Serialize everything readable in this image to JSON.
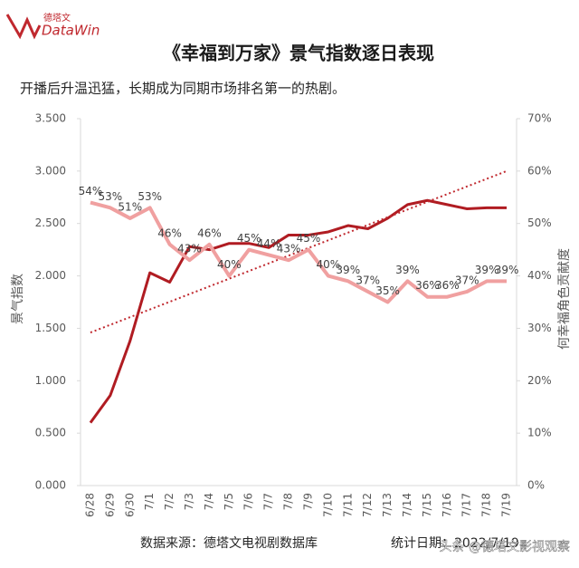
{
  "header": {
    "logo_cn": "德塔文",
    "logo_en": "DataWin"
  },
  "chart_data": {
    "type": "line",
    "title": "《幸福到万家》景气指数逐日表现",
    "subtitle": "开播后升温迅猛，长期成为同期市场排名第一的热剧。",
    "categories": [
      "6/28",
      "6/29",
      "6/30",
      "7/1",
      "7/2",
      "7/3",
      "7/4",
      "7/5",
      "7/6",
      "7/7",
      "7/8",
      "7/9",
      "7/10",
      "7/11",
      "7/12",
      "7/13",
      "7/14",
      "7/15",
      "7/16",
      "7/17",
      "7/18",
      "7/19"
    ],
    "series": [
      {
        "name": "景气指数",
        "color": "#b01c22",
        "values": [
          0.6,
          0.86,
          1.38,
          2.03,
          1.94,
          2.28,
          2.25,
          2.31,
          2.31,
          2.27,
          2.39,
          2.39,
          2.42,
          2.48,
          2.45,
          2.55,
          2.68,
          2.72,
          2.68,
          2.64,
          2.65,
          2.65
        ],
        "trendline": {
          "start": 1.46,
          "end": 3.0,
          "color": "#c0282e"
        }
      },
      {
        "name": "何幸福角色贡献度",
        "color": "#f0a0a0",
        "axis": "y2",
        "values": [
          54,
          53,
          51,
          53,
          46,
          43,
          46,
          40,
          45,
          44,
          43,
          45,
          40,
          39,
          37,
          35,
          39,
          36,
          36,
          37,
          39,
          39
        ],
        "value_labels": [
          "54%",
          "53%",
          "51%",
          "53%",
          "46%",
          "43%",
          "46%",
          "40%",
          "45%",
          "44%",
          "43%",
          "45%",
          "40%",
          "39%",
          "37%",
          "35%",
          "39%",
          "36%",
          "36%",
          "37%",
          "39%",
          "39%"
        ]
      }
    ],
    "ylim": [
      0,
      3.5
    ],
    "yticks": [
      {
        "value": 0,
        "label": "0.000"
      },
      {
        "value": 0.5,
        "label": "0.500"
      },
      {
        "value": 1,
        "label": "1.000"
      },
      {
        "value": 1.5,
        "label": "1.500"
      },
      {
        "value": 2,
        "label": "2.000"
      },
      {
        "value": 2.5,
        "label": "2.500"
      },
      {
        "value": 3,
        "label": "3.000"
      },
      {
        "value": 3.5,
        "label": "3.500"
      }
    ],
    "y2lim": [
      0,
      70
    ],
    "y2ticks": [
      {
        "value": 0,
        "label": "0%"
      },
      {
        "value": 10,
        "label": "10%"
      },
      {
        "value": 20,
        "label": "20%"
      },
      {
        "value": 30,
        "label": "30%"
      },
      {
        "value": 40,
        "label": "40%"
      },
      {
        "value": 50,
        "label": "50%"
      },
      {
        "value": 60,
        "label": "60%"
      },
      {
        "value": 70,
        "label": "70%"
      }
    ],
    "source": "数据来源：德塔文电视剧数据库",
    "date_note": "统计日期：2022/7/19",
    "watermark": "头条 @德塔文影视观察"
  }
}
